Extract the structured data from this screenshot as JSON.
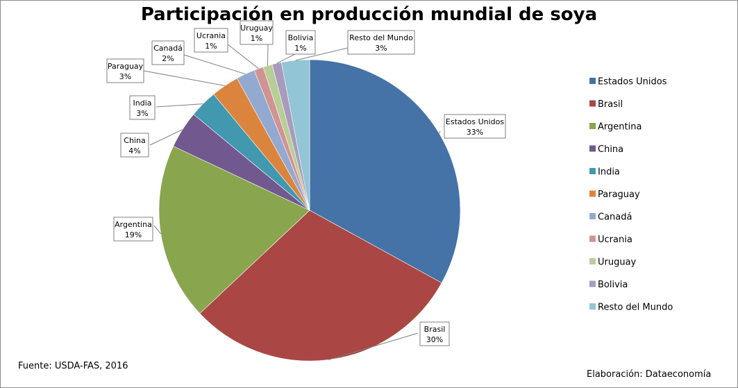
{
  "chart_data": {
    "type": "pie",
    "title": "Participación en producción mundial de soya",
    "legend_position": "right",
    "slices": [
      {
        "label": "Estados Unidos",
        "value": 33,
        "value_label": "33%",
        "color": "#4572A7"
      },
      {
        "label": "Brasil",
        "value": 30,
        "value_label": "30%",
        "color": "#AA4643"
      },
      {
        "label": "Argentina",
        "value": 19,
        "value_label": "19%",
        "color": "#89A54E"
      },
      {
        "label": "China",
        "value": 4,
        "value_label": "4%",
        "color": "#71588F"
      },
      {
        "label": "India",
        "value": 3,
        "value_label": "3%",
        "color": "#4198AF"
      },
      {
        "label": "Paraguay",
        "value": 3,
        "value_label": "3%",
        "color": "#DB843D"
      },
      {
        "label": "Canadá",
        "value": 2,
        "value_label": "2%",
        "color": "#93A9CF"
      },
      {
        "label": "Ucrania",
        "value": 1,
        "value_label": "1%",
        "color": "#D19392"
      },
      {
        "label": "Uruguay",
        "value": 1,
        "value_label": "1%",
        "color": "#B9CD96"
      },
      {
        "label": "Bolivia",
        "value": 1,
        "value_label": "1%",
        "color": "#A99BBD"
      },
      {
        "label": "Resto del Mundo",
        "value": 3,
        "value_label": "3%",
        "color": "#92C5D5"
      }
    ]
  },
  "footer": {
    "source": "Fuente: USDA-FAS, 2016",
    "credit": "Elaboración: Dataeconomía"
  }
}
